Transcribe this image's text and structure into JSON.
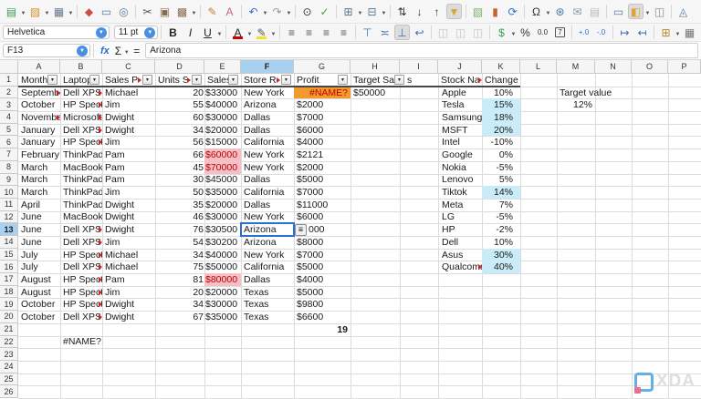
{
  "toolbar_main": {
    "buttons": [
      {
        "name": "new-document-button",
        "glyph": "▤",
        "color": "#3f9e52",
        "dropdown": true
      },
      {
        "name": "open-folder-button",
        "glyph": "▨",
        "color": "#d98e2b",
        "dropdown": true
      },
      {
        "name": "save-button",
        "glyph": "▦",
        "color": "#6b7b8d",
        "dropdown": true,
        "sep_after": true
      },
      {
        "name": "export-pdf-button",
        "glyph": "◆",
        "color": "#c94f4f"
      },
      {
        "name": "print-button",
        "glyph": "▭",
        "color": "#5a7a9c"
      },
      {
        "name": "print-preview-button",
        "glyph": "◎",
        "color": "#5a7a9c",
        "sep_after": true
      },
      {
        "name": "cut-button",
        "glyph": "✂",
        "color": "#555555"
      },
      {
        "name": "copy-button",
        "glyph": "▣",
        "color": "#8a6d4f"
      },
      {
        "name": "paste-button",
        "glyph": "▩",
        "color": "#8a6d4f",
        "dropdown": true,
        "sep_after": true
      },
      {
        "name": "clone-formatting-button",
        "glyph": "✎",
        "color": "#c77f2e"
      },
      {
        "name": "clear-formatting-button",
        "glyph": "A",
        "color": "#c95f8a",
        "sep_after": true
      },
      {
        "name": "undo-button",
        "glyph": "↶",
        "color": "#2b6fd4",
        "dropdown": true
      },
      {
        "name": "redo-button",
        "glyph": "↷",
        "color": "#9a9a9a",
        "dropdown": true,
        "sep_after": true
      },
      {
        "name": "find-replace-button",
        "glyph": "⊙",
        "color": "#333333"
      },
      {
        "name": "spelling-button",
        "glyph": "✓",
        "color": "#3f9e52",
        "sep_after": true
      },
      {
        "name": "insert-row-button",
        "glyph": "⊞",
        "color": "#5a7a9c",
        "dropdown": true
      },
      {
        "name": "insert-column-button",
        "glyph": "⊟",
        "color": "#5a7a9c",
        "dropdown": true,
        "sep_after": true
      },
      {
        "name": "sort-button",
        "glyph": "⇅",
        "color": "#333333"
      },
      {
        "name": "sort-ascending-button",
        "glyph": "↓",
        "color": "#333333"
      },
      {
        "name": "sort-descending-button",
        "glyph": "↑",
        "color": "#333333"
      },
      {
        "name": "autofilter-button",
        "glyph": "▼",
        "color": "#d9a62e",
        "active": true,
        "sep_after": true
      },
      {
        "name": "insert-image-button",
        "glyph": "▧",
        "color": "#7fae6b"
      },
      {
        "name": "insert-chart-button",
        "glyph": "▮",
        "color": "#c95f2e"
      },
      {
        "name": "pivot-table-button",
        "glyph": "⟳",
        "color": "#2b6fd4",
        "sep_after": true
      },
      {
        "name": "special-character-button",
        "glyph": "Ω",
        "color": "#333333",
        "dropdown": true
      },
      {
        "name": "hyperlink-button",
        "glyph": "⊛",
        "color": "#3f7e9e"
      },
      {
        "name": "insert-comment-button",
        "glyph": "✉",
        "color": "#8a98a8"
      },
      {
        "name": "headers-footers-button",
        "glyph": "▤",
        "color": "#b4bcc4",
        "sep_after": true
      },
      {
        "name": "print-area-button",
        "glyph": "▭",
        "color": "#5a7a9c"
      },
      {
        "name": "freeze-panes-button",
        "glyph": "◧",
        "color": "#e0a33c",
        "dropdown": true,
        "active": true
      },
      {
        "name": "split-window-button",
        "glyph": "◫",
        "color": "#888888",
        "sep_after": true
      },
      {
        "name": "draw-functions-button",
        "glyph": "◬",
        "color": "#5a7a9c"
      }
    ]
  },
  "toolbar_format": {
    "font_name": "Helvetica",
    "font_size": "11 pt",
    "buttons": [
      {
        "name": "bold-button",
        "glyph": "B",
        "color": "#222",
        "bold": true
      },
      {
        "name": "italic-button",
        "glyph": "I",
        "color": "#222",
        "italic": true
      },
      {
        "name": "underline-button",
        "glyph": "U",
        "color": "#222",
        "underline": true,
        "dropdown": true,
        "sep_after": true
      },
      {
        "name": "font-color-button",
        "glyph": "A",
        "color": "#222",
        "bar": "#cc0000",
        "dropdown": true
      },
      {
        "name": "highlight-color-button",
        "glyph": "✎",
        "color": "#555",
        "bar": "#f2e21f",
        "dropdown": true,
        "sep_after": true
      },
      {
        "name": "align-left-button",
        "glyph": "≡",
        "color": "#555"
      },
      {
        "name": "align-center-button",
        "glyph": "≡",
        "color": "#555"
      },
      {
        "name": "align-right-button",
        "glyph": "≡",
        "color": "#555"
      },
      {
        "name": "align-justify-button",
        "glyph": "≡",
        "color": "#555",
        "sep_after": true
      },
      {
        "name": "align-top-button",
        "glyph": "⊤",
        "color": "#3a6fb0"
      },
      {
        "name": "center-vertically-button",
        "glyph": "≍",
        "color": "#3a6fb0"
      },
      {
        "name": "align-bottom-button",
        "glyph": "⊥",
        "color": "#3a6fb0",
        "active": true
      },
      {
        "name": "wrap-text-button",
        "glyph": "↩",
        "color": "#3a6fb0",
        "sep_after": true
      },
      {
        "name": "merge-cells-button",
        "glyph": "◫",
        "color": "#c4c4c4"
      },
      {
        "name": "merge-across-button",
        "glyph": "◫",
        "color": "#c4c4c4"
      },
      {
        "name": "unmerge-cells-button",
        "glyph": "◫",
        "color": "#c4c4c4",
        "sep_after": true
      },
      {
        "name": "format-currency-button",
        "glyph": "$",
        "color": "#3f9e52",
        "dropdown": true
      },
      {
        "name": "format-percent-button",
        "glyph": "%",
        "color": "#333"
      },
      {
        "name": "format-number-button",
        "glyph": "0.0",
        "color": "#333",
        "small": true
      },
      {
        "name": "format-date-button",
        "glyph": "7",
        "color": "#333",
        "boxed": true,
        "sep_after": true
      },
      {
        "name": "add-decimal-button",
        "glyph": "+.0",
        "color": "#2b6fd4",
        "small": true
      },
      {
        "name": "delete-decimal-button",
        "glyph": "-.0",
        "color": "#2b6fd4",
        "small": true,
        "sep_after": true
      },
      {
        "name": "increase-indent-button",
        "glyph": "↦",
        "color": "#3a6fb0"
      },
      {
        "name": "decrease-indent-button",
        "glyph": "↤",
        "color": "#3a6fb0",
        "sep_after": true
      },
      {
        "name": "borders-button",
        "glyph": "⊞",
        "color": "#b58a2e",
        "dropdown": true
      },
      {
        "name": "border-style-button",
        "glyph": "▦",
        "color": "#777"
      }
    ]
  },
  "formula_bar": {
    "cell_ref": "F13",
    "fx_label": "fx",
    "sum_label": "Σ",
    "equals_label": "=",
    "formula": "Arizona"
  },
  "sheet": {
    "column_letters": [
      "A",
      "B",
      "C",
      "D",
      "E",
      "F",
      "G",
      "H",
      "I",
      "J",
      "K",
      "L",
      "M",
      "N",
      "O",
      "P"
    ],
    "row_count": 26,
    "selected_column": "F",
    "selected_row": 13,
    "colors": {
      "error_bg": "#f29a2e",
      "error_text": "#c00000",
      "alert_bg": "#f4bfc7",
      "alert_text": "#c00000",
      "highlight_bg": "#c9ecf8",
      "selection": "#2a6fd1"
    },
    "table1_headers": [
      {
        "col": "A",
        "label": "Month",
        "filter": true
      },
      {
        "col": "B",
        "label": "Laptop",
        "filter": true
      },
      {
        "col": "C",
        "label": "Sales Per",
        "filter": true,
        "truncated": true
      },
      {
        "col": "D",
        "label": "Units S",
        "filter": true,
        "truncated": true
      },
      {
        "col": "E",
        "label": "Sales",
        "filter": true
      },
      {
        "col": "F",
        "label": "Store Reg",
        "filter": true,
        "truncated": true
      },
      {
        "col": "G",
        "label": "Profit",
        "filter": true
      },
      {
        "col": "H",
        "label": "Target Sa",
        "filter": true,
        "overflow_text": "s"
      }
    ],
    "table1_rows": [
      {
        "row": 2,
        "month": "September",
        "month_truncated": true,
        "laptop": "Dell XPS",
        "laptop_truncated": true,
        "sales_person": "Michael",
        "units_sold": "20",
        "sales": "$33000",
        "sales_highlight": false,
        "store_region": "New York",
        "profit": "#NAME?",
        "profit_error": true
      },
      {
        "row": 3,
        "month": "October",
        "laptop": "HP Spectr",
        "laptop_truncated": true,
        "sales_person": "Jim",
        "units_sold": "55",
        "sales": "$40000",
        "store_region": "Arizona",
        "profit": "$2000"
      },
      {
        "row": 4,
        "month": "November",
        "month_truncated": true,
        "laptop": "Microsoft",
        "laptop_truncated": true,
        "sales_person": "Dwight",
        "units_sold": "60",
        "sales": "$30000",
        "store_region": "Dallas",
        "profit": "$7000"
      },
      {
        "row": 5,
        "month": "January",
        "laptop": "Dell XPS",
        "laptop_truncated": true,
        "sales_person": "Dwight",
        "units_sold": "34",
        "sales": "$20000",
        "store_region": "Dallas",
        "profit": "$6000"
      },
      {
        "row": 6,
        "month": "January",
        "laptop": "HP Spectr",
        "laptop_truncated": true,
        "sales_person": "Jim",
        "units_sold": "56",
        "sales": "$15000",
        "store_region": "California",
        "profit": "$4000"
      },
      {
        "row": 7,
        "month": "February",
        "laptop": "ThinkPad",
        "sales_person": "Pam",
        "units_sold": "66",
        "sales": "$60000",
        "sales_highlight": true,
        "store_region": "New York",
        "profit": "$2121"
      },
      {
        "row": 8,
        "month": "March",
        "laptop": "MacBook",
        "sales_person": "Pam",
        "units_sold": "45",
        "sales": "$70000",
        "sales_highlight": true,
        "store_region": "New York",
        "profit": "$2000"
      },
      {
        "row": 9,
        "month": "March",
        "laptop": "ThinkPad",
        "sales_person": "Pam",
        "units_sold": "30",
        "sales": "$45000",
        "store_region": "Dallas",
        "profit": "$5000"
      },
      {
        "row": 10,
        "month": "March",
        "laptop": "ThinkPad",
        "sales_person": "Jim",
        "units_sold": "50",
        "sales": "$35000",
        "store_region": "California",
        "profit": "$7000"
      },
      {
        "row": 11,
        "month": "April",
        "laptop": "ThinkPad",
        "sales_person": "Dwight",
        "units_sold": "35",
        "sales": "$20000",
        "store_region": "Dallas",
        "profit": "$11000"
      },
      {
        "row": 12,
        "month": "June",
        "laptop": "MacBook",
        "sales_person": "Dwight",
        "units_sold": "46",
        "sales": "$30000",
        "store_region": "New York",
        "profit": "$6000"
      },
      {
        "row": 13,
        "month": "June",
        "laptop": "Dell XPS",
        "laptop_truncated": true,
        "sales_person": "Dwight",
        "units_sold": "76",
        "sales": "$30500",
        "store_region": "Arizona",
        "selected": true,
        "profit": "000",
        "profit_obscured": true
      },
      {
        "row": 14,
        "month": "June",
        "laptop": "Dell XPS",
        "laptop_truncated": true,
        "sales_person": "Jim",
        "units_sold": "54",
        "sales": "$30200",
        "store_region": "Arizona",
        "profit": "$8000"
      },
      {
        "row": 15,
        "month": "July",
        "laptop": "HP Spectr",
        "laptop_truncated": true,
        "sales_person": "Michael",
        "units_sold": "34",
        "sales": "$40000",
        "store_region": "New York",
        "profit": "$7000"
      },
      {
        "row": 16,
        "month": "July",
        "laptop": "Dell XPS",
        "laptop_truncated": true,
        "sales_person": "Michael",
        "units_sold": "75",
        "sales": "$50000",
        "store_region": "California",
        "profit": "$5000"
      },
      {
        "row": 17,
        "month": "August",
        "laptop": "HP Spectr",
        "laptop_truncated": true,
        "sales_person": "Pam",
        "units_sold": "81",
        "sales": "$80000",
        "sales_highlight": true,
        "store_region": "Dallas",
        "profit": "$4000"
      },
      {
        "row": 18,
        "month": "August",
        "laptop": "HP Spectr",
        "laptop_truncated": true,
        "sales_person": "Jim",
        "units_sold": "20",
        "sales": "$20000",
        "store_region": "Texas",
        "profit": "$5000"
      },
      {
        "row": 19,
        "month": "October",
        "laptop": "HP Spectr",
        "laptop_truncated": true,
        "sales_person": "Dwight",
        "units_sold": "34",
        "sales": "$30000",
        "store_region": "Texas",
        "profit": "$9800"
      },
      {
        "row": 20,
        "month": "October",
        "laptop": "Dell XPS",
        "laptop_truncated": true,
        "sales_person": "Dwight",
        "units_sold": "67",
        "sales": "$35000",
        "store_region": "Texas",
        "profit": "$6600"
      }
    ],
    "table2_headers": [
      {
        "col": "J",
        "label": "Stock Na",
        "truncated": true
      },
      {
        "col": "K",
        "label": "Change"
      }
    ],
    "table2_rows": [
      {
        "row": 2,
        "stock": "Apple",
        "change": "10%",
        "highlight": false
      },
      {
        "row": 3,
        "stock": "Tesla",
        "change": "15%",
        "highlight": true
      },
      {
        "row": 4,
        "stock": "Samsung",
        "change": "18%",
        "highlight": true
      },
      {
        "row": 5,
        "stock": "MSFT",
        "change": "20%",
        "highlight": true
      },
      {
        "row": 6,
        "stock": "Intel",
        "change": "-10%",
        "highlight": false
      },
      {
        "row": 7,
        "stock": "Google",
        "change": "0%",
        "highlight": false
      },
      {
        "row": 8,
        "stock": "Nokia",
        "change": "-5%",
        "highlight": false
      },
      {
        "row": 9,
        "stock": "Lenovo",
        "change": "5%",
        "highlight": false
      },
      {
        "row": 10,
        "stock": "Tiktok",
        "change": "14%",
        "highlight": true
      },
      {
        "row": 11,
        "stock": "Meta",
        "change": "7%",
        "highlight": false
      },
      {
        "row": 12,
        "stock": "LG",
        "change": "-5%",
        "highlight": false
      },
      {
        "row": 13,
        "stock": "HP",
        "change": "-2%",
        "highlight": false
      },
      {
        "row": 14,
        "stock": "Dell",
        "change": "10%",
        "highlight": false
      },
      {
        "row": 15,
        "stock": "Asus",
        "change": "30%",
        "highlight": true
      },
      {
        "row": 16,
        "stock": "Qualcomm",
        "change": "40%",
        "highlight": true,
        "stock_truncated": true
      }
    ],
    "extra_cells": [
      {
        "cell": "H2",
        "text": "$50000",
        "align": "left"
      },
      {
        "cell": "M2",
        "text": "Target value",
        "align": "left"
      },
      {
        "cell": "M3",
        "text": "12%",
        "align": "right"
      },
      {
        "cell": "G21",
        "text": "19",
        "align": "right",
        "bold": true
      },
      {
        "cell": "B22",
        "text": "#NAME?",
        "align": "left"
      }
    ]
  },
  "watermark": {
    "text": "XDA"
  }
}
